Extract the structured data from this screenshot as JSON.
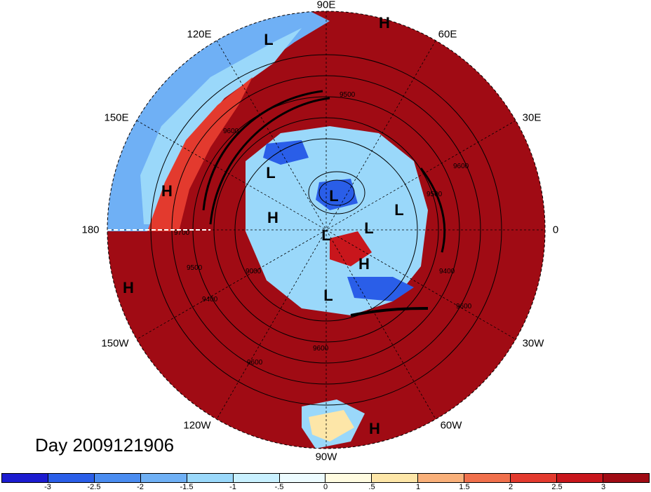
{
  "longitude_labels": [
    {
      "key": "lon-90e",
      "text": "90E"
    },
    {
      "key": "lon-60e",
      "text": "60E"
    },
    {
      "key": "lon-30e",
      "text": "30E"
    },
    {
      "key": "lon-0",
      "text": "0"
    },
    {
      "key": "lon-30w",
      "text": "30W"
    },
    {
      "key": "lon-60w",
      "text": "60W"
    },
    {
      "key": "lon-90w",
      "text": "90W"
    },
    {
      "key": "lon-120w",
      "text": "120W"
    },
    {
      "key": "lon-150w",
      "text": "150W"
    },
    {
      "key": "lon-180",
      "text": "180"
    },
    {
      "key": "lon-150e",
      "text": "150E"
    },
    {
      "key": "lon-120e",
      "text": "120E"
    }
  ],
  "pressure_systems": [
    {
      "key": "high-north",
      "text": "H"
    },
    {
      "key": "low-north",
      "text": "L"
    },
    {
      "key": "high-west",
      "text": "H"
    },
    {
      "key": "high-southwest",
      "text": "H"
    },
    {
      "key": "low-1",
      "text": "L"
    },
    {
      "key": "high-center",
      "text": "H"
    },
    {
      "key": "low-2",
      "text": "L"
    },
    {
      "key": "low-3",
      "text": "L"
    },
    {
      "key": "low-4",
      "text": "L"
    },
    {
      "key": "low-5",
      "text": "L"
    },
    {
      "key": "high-east",
      "text": "H"
    },
    {
      "key": "low-6",
      "text": "L"
    },
    {
      "key": "high-south",
      "text": "H"
    }
  ],
  "contour_labels": [
    "9500",
    "9600",
    "9700",
    "9500",
    "9000",
    "9400",
    "9600",
    "9400",
    "9600",
    "9600",
    "9500",
    "9600"
  ],
  "day_label": "Day 2009121906",
  "colorbar": {
    "colors": [
      "#1c1cd0",
      "#2a5ee8",
      "#4a8cf0",
      "#6fb0f5",
      "#9ad8fa",
      "#c8f0ff",
      "#ecfbff",
      "#fffbe0",
      "#fde6a8",
      "#f9b07a",
      "#f0704c",
      "#e33a2e",
      "#c8161c",
      "#a00b14"
    ],
    "ticks": [
      "-3",
      "-2.5",
      "-2",
      "-1.5",
      "-1",
      "-.5",
      "0",
      ".5",
      "1",
      "1.5",
      "2",
      "2.5",
      "3"
    ]
  },
  "map_colors": {
    "warm_anomaly": "#a00b14",
    "cold_anomaly": "#2a5ee8",
    "background": "#ffffff"
  }
}
